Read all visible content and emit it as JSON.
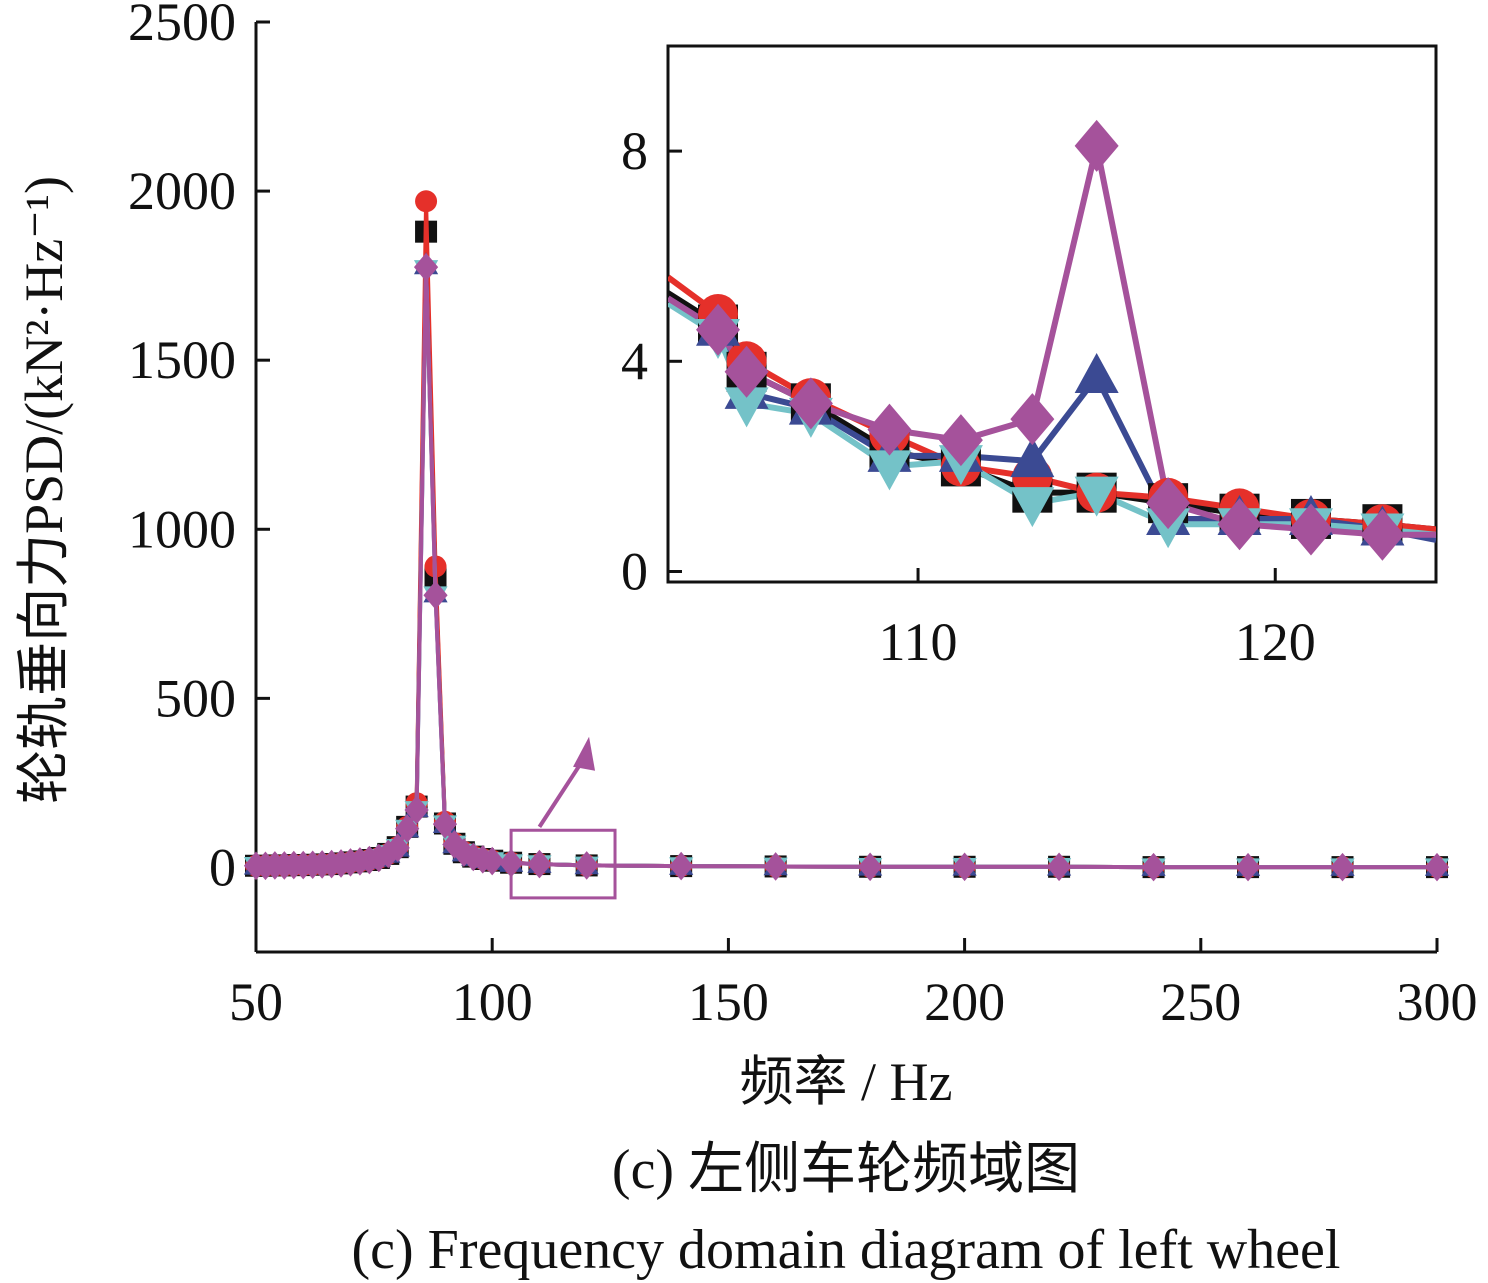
{
  "chart_data": {
    "type": "line",
    "xlabel": "频率 / Hz",
    "ylabel": "轮轨垂向力PSD/(kN²·Hz⁻¹)",
    "caption_cn": "(c) 左侧车轮频域图",
    "caption_en": "(c) Frequency domain diagram of left wheel",
    "xlim": [
      50,
      300
    ],
    "ylim": [
      -250,
      2500
    ],
    "xticks": [
      50,
      100,
      150,
      200,
      250,
      300
    ],
    "yticks": [
      0,
      500,
      1000,
      1500,
      2000,
      2500
    ],
    "colors": {
      "red": "#e5302a",
      "black": "#111111",
      "navy": "#3b4a93",
      "cyan": "#74c2c8",
      "purple": "#a5529b"
    },
    "main_series": [
      {
        "color": "black",
        "marker": "square",
        "x": [
          50,
          52,
          54,
          56,
          58,
          60,
          62,
          64,
          66,
          68,
          70,
          72,
          74,
          76,
          78,
          80,
          82,
          84,
          86,
          88,
          90,
          92,
          94,
          96,
          98,
          100,
          104,
          110,
          120,
          140,
          160,
          180,
          200,
          220,
          240,
          260,
          280,
          300
        ],
        "y": [
          5,
          5,
          6,
          6,
          7,
          7,
          8,
          9,
          10,
          12,
          15,
          18,
          22,
          28,
          40,
          60,
          120,
          180,
          1880,
          860,
          130,
          70,
          45,
          32,
          25,
          20,
          14,
          10,
          6,
          4,
          3,
          2,
          2,
          2,
          1,
          1,
          1,
          1
        ]
      },
      {
        "color": "red",
        "marker": "circle",
        "x": [
          50,
          52,
          54,
          56,
          58,
          60,
          62,
          64,
          66,
          68,
          70,
          72,
          74,
          76,
          78,
          80,
          82,
          84,
          86,
          88,
          90,
          92,
          94,
          96,
          98,
          100,
          104,
          110,
          120,
          140,
          160,
          180,
          200,
          220,
          240,
          260,
          280,
          300
        ],
        "y": [
          5,
          5,
          6,
          6,
          7,
          7,
          8,
          9,
          10,
          12,
          15,
          18,
          22,
          28,
          40,
          60,
          120,
          190,
          1970,
          890,
          135,
          72,
          46,
          33,
          25,
          20,
          14,
          10,
          6,
          4,
          3,
          2,
          2,
          2,
          1,
          1,
          1,
          1
        ]
      },
      {
        "color": "navy",
        "marker": "triangle-up",
        "x": [
          50,
          52,
          54,
          56,
          58,
          60,
          62,
          64,
          66,
          68,
          70,
          72,
          74,
          76,
          78,
          80,
          82,
          84,
          86,
          88,
          90,
          92,
          94,
          96,
          98,
          100,
          104,
          110,
          120,
          140,
          160,
          180,
          200,
          220,
          240,
          260,
          280,
          300
        ],
        "y": [
          5,
          5,
          6,
          6,
          7,
          7,
          8,
          9,
          10,
          12,
          15,
          18,
          22,
          28,
          40,
          58,
          115,
          175,
          1780,
          810,
          128,
          68,
          44,
          31,
          24,
          19,
          13,
          10,
          6,
          4,
          3,
          2,
          2,
          2,
          1,
          1,
          1,
          1
        ]
      },
      {
        "color": "cyan",
        "marker": "triangle-down",
        "x": [
          50,
          52,
          54,
          56,
          58,
          60,
          62,
          64,
          66,
          68,
          70,
          72,
          74,
          76,
          78,
          80,
          82,
          84,
          86,
          88,
          90,
          92,
          94,
          96,
          98,
          100,
          104,
          110,
          120,
          140,
          160,
          180,
          200,
          220,
          240,
          260,
          280,
          300
        ],
        "y": [
          5,
          5,
          6,
          6,
          7,
          7,
          8,
          9,
          10,
          12,
          15,
          18,
          22,
          28,
          40,
          58,
          115,
          170,
          1770,
          805,
          128,
          68,
          44,
          31,
          24,
          19,
          13,
          10,
          6,
          4,
          3,
          2,
          2,
          2,
          1,
          1,
          1,
          1
        ]
      },
      {
        "color": "purple",
        "marker": "diamond",
        "x": [
          50,
          52,
          54,
          56,
          58,
          60,
          62,
          64,
          66,
          68,
          70,
          72,
          74,
          76,
          78,
          80,
          82,
          84,
          86,
          88,
          90,
          92,
          94,
          96,
          98,
          100,
          104,
          110,
          120,
          140,
          160,
          180,
          200,
          220,
          240,
          260,
          280,
          300
        ],
        "y": [
          5,
          5,
          6,
          6,
          7,
          7,
          8,
          9,
          10,
          12,
          15,
          18,
          22,
          28,
          40,
          58,
          115,
          170,
          1775,
          805,
          128,
          68,
          44,
          31,
          24,
          19,
          13,
          10,
          6,
          4,
          3,
          2,
          2,
          2,
          1,
          1,
          1,
          1
        ]
      }
    ],
    "inset": {
      "xlim": [
        103,
        124.5
      ],
      "ylim": [
        -0.2,
        10
      ],
      "xticks": [
        110,
        120
      ],
      "yticks": [
        0,
        4,
        8
      ],
      "series": [
        {
          "color": "black",
          "marker": "square",
          "x": [
            103,
            104.4,
            105.2,
            107,
            109.2,
            111.2,
            113.2,
            115,
            117,
            119,
            121,
            123,
            124.5
          ],
          "y": [
            5.3,
            4.7,
            3.8,
            3.2,
            2.3,
            2.0,
            1.5,
            1.5,
            1.3,
            1.1,
            1.0,
            0.9,
            0.8
          ]
        },
        {
          "color": "red",
          "marker": "circle",
          "x": [
            103,
            104.4,
            105.2,
            107,
            109.2,
            111.2,
            113.2,
            115,
            117,
            119,
            121,
            123,
            124.5
          ],
          "y": [
            5.6,
            4.9,
            4.0,
            3.3,
            2.6,
            2.0,
            1.8,
            1.5,
            1.4,
            1.2,
            1.0,
            0.9,
            0.8
          ]
        },
        {
          "color": "navy",
          "marker": "triangle-up",
          "x": [
            103,
            104.4,
            105.2,
            107,
            109.2,
            111.2,
            113.2,
            115,
            117,
            119,
            121,
            123,
            124.5
          ],
          "y": [
            5.2,
            4.6,
            3.4,
            3.1,
            2.2,
            2.2,
            2.1,
            3.7,
            1.0,
            1.0,
            1.0,
            0.8,
            0.6
          ]
        },
        {
          "color": "cyan",
          "marker": "triangle-down",
          "x": [
            103,
            104.4,
            105.2,
            107,
            109.2,
            111.2,
            113.2,
            115,
            117,
            119,
            121,
            123,
            124.5
          ],
          "y": [
            5.1,
            4.5,
            3.2,
            3.0,
            2.0,
            2.1,
            1.3,
            1.5,
            0.9,
            0.9,
            0.9,
            0.8,
            0.7
          ]
        },
        {
          "color": "purple",
          "marker": "diamond",
          "x": [
            103,
            104.4,
            105.2,
            107,
            109.2,
            111.2,
            113.2,
            115,
            117,
            119,
            121,
            123,
            124.5
          ],
          "y": [
            5.2,
            4.6,
            3.8,
            3.2,
            2.7,
            2.5,
            2.9,
            8.1,
            1.3,
            0.9,
            0.8,
            0.7,
            0.7
          ]
        }
      ]
    }
  }
}
